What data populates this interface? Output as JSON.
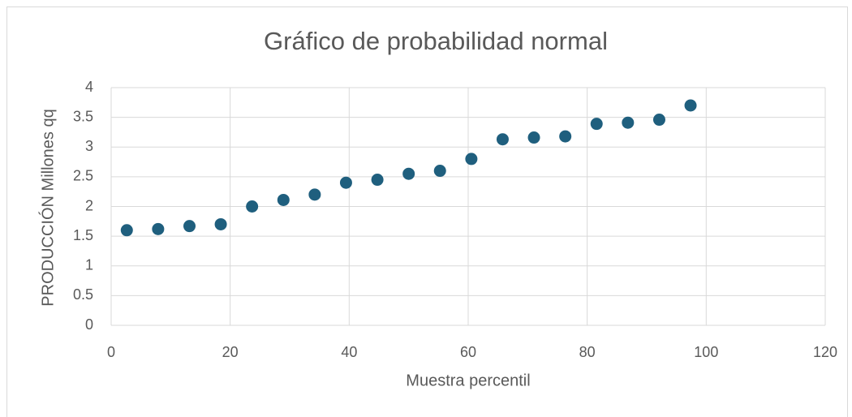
{
  "chart_data": {
    "type": "scatter",
    "title": "Gráfico de probabilidad normal",
    "x_label": "Muestra percentil",
    "y_label": "PRODUCCIÓN Millones qq",
    "series": [
      {
        "name": "PRODUCCIÓN Millones qq",
        "color": "#1f5f7e",
        "x": [
          2.63,
          7.89,
          13.16,
          18.42,
          23.68,
          28.95,
          34.21,
          39.47,
          44.74,
          50,
          55.26,
          60.53,
          65.79,
          71.05,
          76.32,
          81.58,
          86.84,
          92.11,
          97.37
        ],
        "values": [
          1.6,
          1.62,
          1.67,
          1.7,
          2.0,
          2.11,
          2.2,
          2.4,
          2.45,
          2.55,
          2.6,
          2.8,
          3.13,
          3.16,
          3.18,
          3.39,
          3.41,
          3.46,
          3.7
        ]
      }
    ],
    "xlim": [
      0,
      120
    ],
    "xticks": [
      0,
      20,
      40,
      60,
      80,
      100,
      120
    ],
    "ylim": [
      0,
      4
    ],
    "yticks": [
      0,
      0.5,
      1,
      1.5,
      2,
      2.5,
      3,
      3.5,
      4
    ],
    "grid": true
  }
}
